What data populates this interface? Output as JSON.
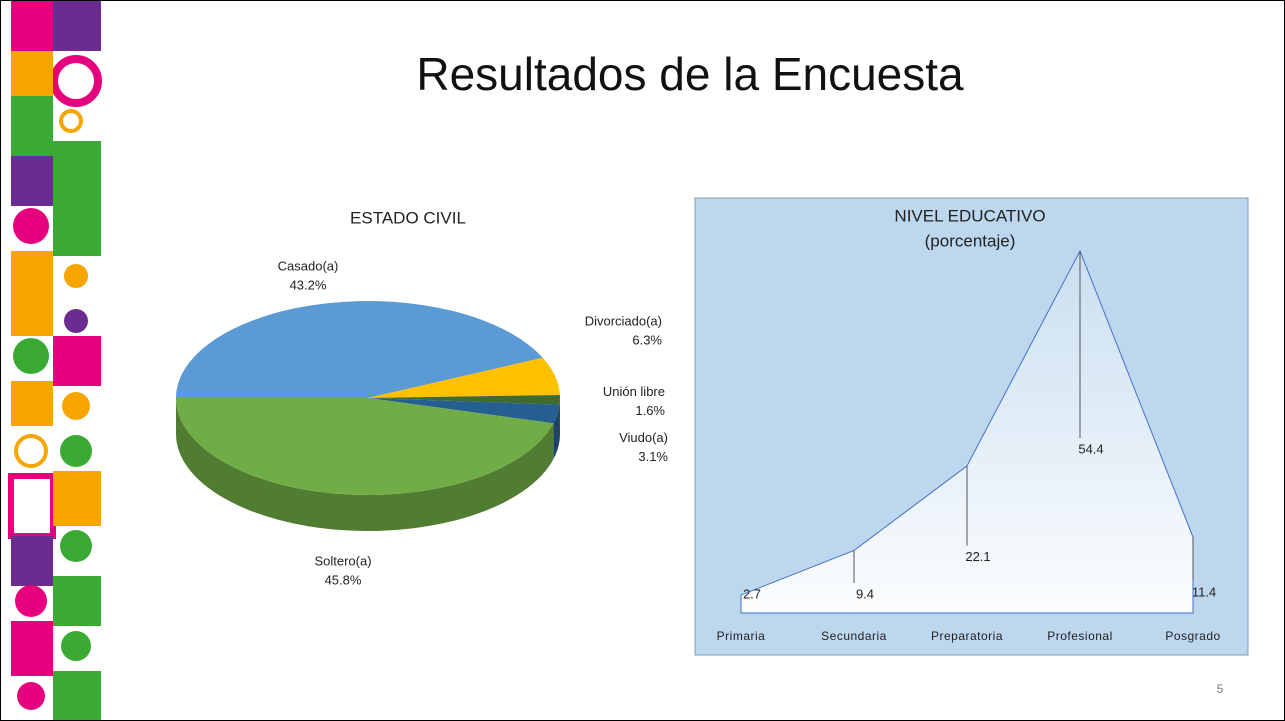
{
  "title": "Resultados de la Encuesta",
  "slide_number": "5",
  "chart_data": [
    {
      "type": "pie",
      "title": "ESTADO CIVIL",
      "categories": [
        "Casado(a)",
        "Divorciado(a)",
        "Unión libre",
        "Viudo(a)",
        "Soltero(a)"
      ],
      "values": [
        43.2,
        6.3,
        1.6,
        3.1,
        45.8
      ],
      "value_labels": [
        "43.2%",
        "6.3%",
        "1.6%",
        "3.1%",
        "45.8%"
      ],
      "colors": [
        "#5b9bd5",
        "#ffc000",
        "#3f6c2e",
        "#255e91",
        "#70ad47"
      ]
    },
    {
      "type": "area",
      "title": "NIVEL EDUCATIVO",
      "subtitle": "(porcentaje)",
      "categories": [
        "Primaria",
        "Secundaria",
        "Preparatoria",
        "Profesional",
        "Posgrado"
      ],
      "values": [
        2.7,
        9.4,
        22.1,
        54.4,
        11.4
      ],
      "color": "#4472c4"
    }
  ]
}
